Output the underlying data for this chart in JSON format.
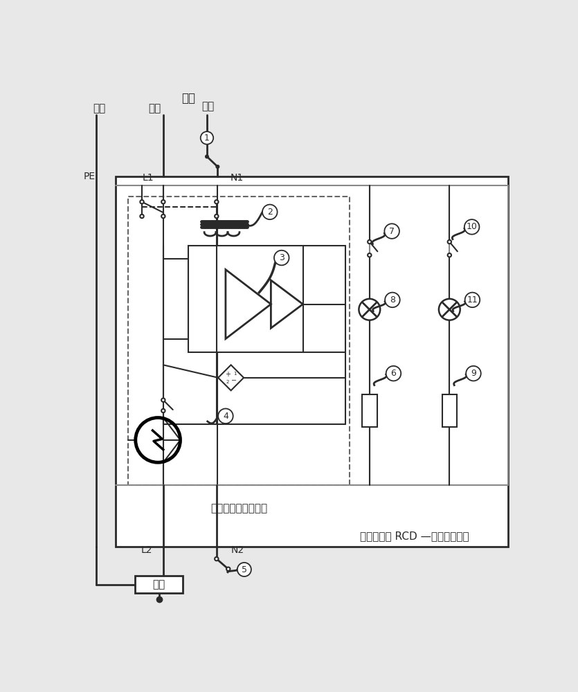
{
  "bg_color": "#e8e8e8",
  "line_color": "#2a2a2a",
  "gray_line": "#888888",
  "title": "漏电保护器 RCD —双测试电路型",
  "label_power": "电源",
  "label_ground": "地线",
  "label_live": "火线",
  "label_neutral": "零线",
  "label_PE": "PE",
  "label_L1": "L1",
  "label_N1": "N1",
  "label_L2": "L2",
  "label_N2": "N2",
  "label_load": "负载",
  "label_rcd": "漏电保护器主要结构"
}
